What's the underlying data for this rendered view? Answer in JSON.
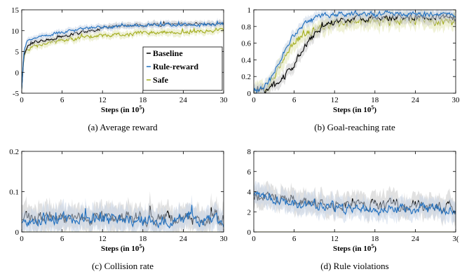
{
  "colors": {
    "baseline": "#000000",
    "rule_reward": "#1f6fbf",
    "safe": "#a3ad1e",
    "band_baseline": "#c8c8c8",
    "band_rule": "#c9d6e8",
    "band_safe": "#e2e6b4"
  },
  "xlabel_prefix": "Steps (in 10",
  "xlabel_exp": "5",
  "xlabel_suffix": ")",
  "chart_data": [
    {
      "id": "a",
      "type": "line",
      "title": "",
      "caption": "(a) Average reward",
      "xlabel": "Steps (in 10^5)",
      "ylabel": "",
      "xlim": [
        0,
        30
      ],
      "ylim": [
        -5,
        15
      ],
      "xticks": [
        "0",
        "6",
        "12",
        "18",
        "24",
        "30"
      ],
      "yticks": [
        "-5",
        "0",
        "5",
        "10",
        "15"
      ],
      "grid": false,
      "legend": "bottom-right",
      "series": [
        {
          "name": "Baseline",
          "x": [
            0,
            0.3,
            0.8,
            2,
            4,
            6,
            8,
            10,
            12,
            14,
            16,
            18,
            20,
            22,
            24,
            26,
            28,
            30
          ],
          "y": [
            -4,
            4,
            6.5,
            7.5,
            8,
            8.5,
            9.3,
            10,
            10.6,
            11,
            11.2,
            11.3,
            11.4,
            11.5,
            11.6,
            11.6,
            11.6,
            11.7
          ],
          "noise": 0.3
        },
        {
          "name": "Rule-reward",
          "x": [
            0,
            0.3,
            0.8,
            2,
            4,
            6,
            8,
            10,
            12,
            14,
            16,
            18,
            20,
            22,
            24,
            26,
            28,
            30
          ],
          "y": [
            -4,
            5,
            7.3,
            8.2,
            9,
            9.7,
            10.2,
            10.6,
            10.9,
            11.1,
            11.2,
            11.3,
            11.4,
            11.4,
            11.5,
            11.5,
            11.5,
            11.6
          ],
          "noise": 0.3
        },
        {
          "name": "Safe",
          "x": [
            0,
            0.3,
            0.8,
            2,
            4,
            6,
            8,
            10,
            12,
            14,
            16,
            18,
            20,
            22,
            24,
            26,
            28,
            30
          ],
          "y": [
            -4,
            3.5,
            5.5,
            6.3,
            7.1,
            7.7,
            8.1,
            8.5,
            8.8,
            9.1,
            9.3,
            9.5,
            9.6,
            9.7,
            9.8,
            9.9,
            9.9,
            10
          ],
          "noise": 0.35
        }
      ]
    },
    {
      "id": "b",
      "type": "line",
      "title": "",
      "caption": "(b) Goal-reaching rate",
      "xlabel": "Steps (in 10^5)",
      "ylabel": "",
      "xlim": [
        0,
        30
      ],
      "ylim": [
        0,
        1
      ],
      "xticks": [
        "0",
        "6",
        "12",
        "18",
        "24",
        "30"
      ],
      "yticks": [
        "0",
        "0.2",
        "0.4",
        "0.6",
        "0.8",
        "1"
      ],
      "grid": false,
      "legend": "none",
      "series": [
        {
          "name": "Baseline",
          "x": [
            0,
            2,
            4,
            5,
            6,
            7,
            8,
            9,
            10,
            11,
            12,
            14,
            16,
            18,
            20,
            24,
            30
          ],
          "y": [
            0,
            0.05,
            0.15,
            0.25,
            0.35,
            0.5,
            0.6,
            0.7,
            0.78,
            0.83,
            0.86,
            0.88,
            0.9,
            0.9,
            0.91,
            0.91,
            0.91
          ],
          "noise": 0.03
        },
        {
          "name": "Rule-reward",
          "x": [
            0,
            1,
            2,
            3,
            4,
            5,
            6,
            7,
            8,
            9,
            10,
            12,
            14,
            18,
            24,
            30
          ],
          "y": [
            0,
            0.05,
            0.12,
            0.25,
            0.4,
            0.57,
            0.7,
            0.8,
            0.86,
            0.9,
            0.92,
            0.94,
            0.95,
            0.95,
            0.95,
            0.95
          ],
          "noise": 0.025
        },
        {
          "name": "Safe",
          "x": [
            0,
            1,
            2,
            3,
            4,
            5,
            6,
            7,
            8,
            10,
            12,
            14,
            16,
            18,
            24,
            30
          ],
          "y": [
            0,
            0.04,
            0.1,
            0.22,
            0.35,
            0.48,
            0.6,
            0.68,
            0.73,
            0.79,
            0.83,
            0.85,
            0.86,
            0.87,
            0.87,
            0.87
          ],
          "noise": 0.04
        }
      ]
    },
    {
      "id": "c",
      "type": "line",
      "title": "",
      "caption": "(c) Collision rate",
      "xlabel": "Steps (in 10^5)",
      "ylabel": "",
      "xlim": [
        0,
        30
      ],
      "ylim": [
        0,
        0.2
      ],
      "xticks": [
        "0",
        "6",
        "12",
        "18",
        "24",
        "30"
      ],
      "yticks": [
        "0",
        "0.1",
        "0.2"
      ],
      "grid": false,
      "legend": "none",
      "series": [
        {
          "name": "Baseline",
          "x": [
            0,
            30
          ],
          "y": [
            0.035,
            0.035
          ],
          "noise": 0.013
        },
        {
          "name": "Rule-reward",
          "x": [
            0,
            30
          ],
          "y": [
            0.03,
            0.03
          ],
          "noise": 0.012
        },
        {
          "name": "Safe",
          "x": [
            0,
            30
          ],
          "y": [
            0,
            0
          ],
          "noise": 0
        }
      ]
    },
    {
      "id": "d",
      "type": "line",
      "title": "",
      "caption": "(d) Rule violations",
      "xlabel": "Steps (in 10^5)",
      "ylabel": "",
      "xlim": [
        0,
        30
      ],
      "ylim": [
        0,
        8
      ],
      "xticks": [
        "0",
        "6",
        "12",
        "18",
        "24",
        "3("
      ],
      "yticks": [
        "0",
        "2",
        "4",
        "6",
        "8"
      ],
      "grid": false,
      "legend": "none",
      "series": [
        {
          "name": "Baseline",
          "x": [
            0,
            3,
            6,
            10,
            14,
            18,
            22,
            26,
            30
          ],
          "y": [
            3.6,
            3.5,
            3.1,
            2.8,
            2.7,
            2.6,
            2.6,
            2.5,
            2.5
          ],
          "noise": 0.45
        },
        {
          "name": "Rule-reward",
          "x": [
            0,
            3,
            6,
            10,
            14,
            18,
            22,
            26,
            30
          ],
          "y": [
            3.5,
            3.2,
            2.8,
            2.6,
            2.4,
            2.3,
            2.3,
            2.3,
            2.3
          ],
          "noise": 0.4
        },
        {
          "name": "Safe",
          "x": [
            0,
            30
          ],
          "y": [
            0,
            0
          ],
          "noise": 0
        }
      ]
    }
  ]
}
